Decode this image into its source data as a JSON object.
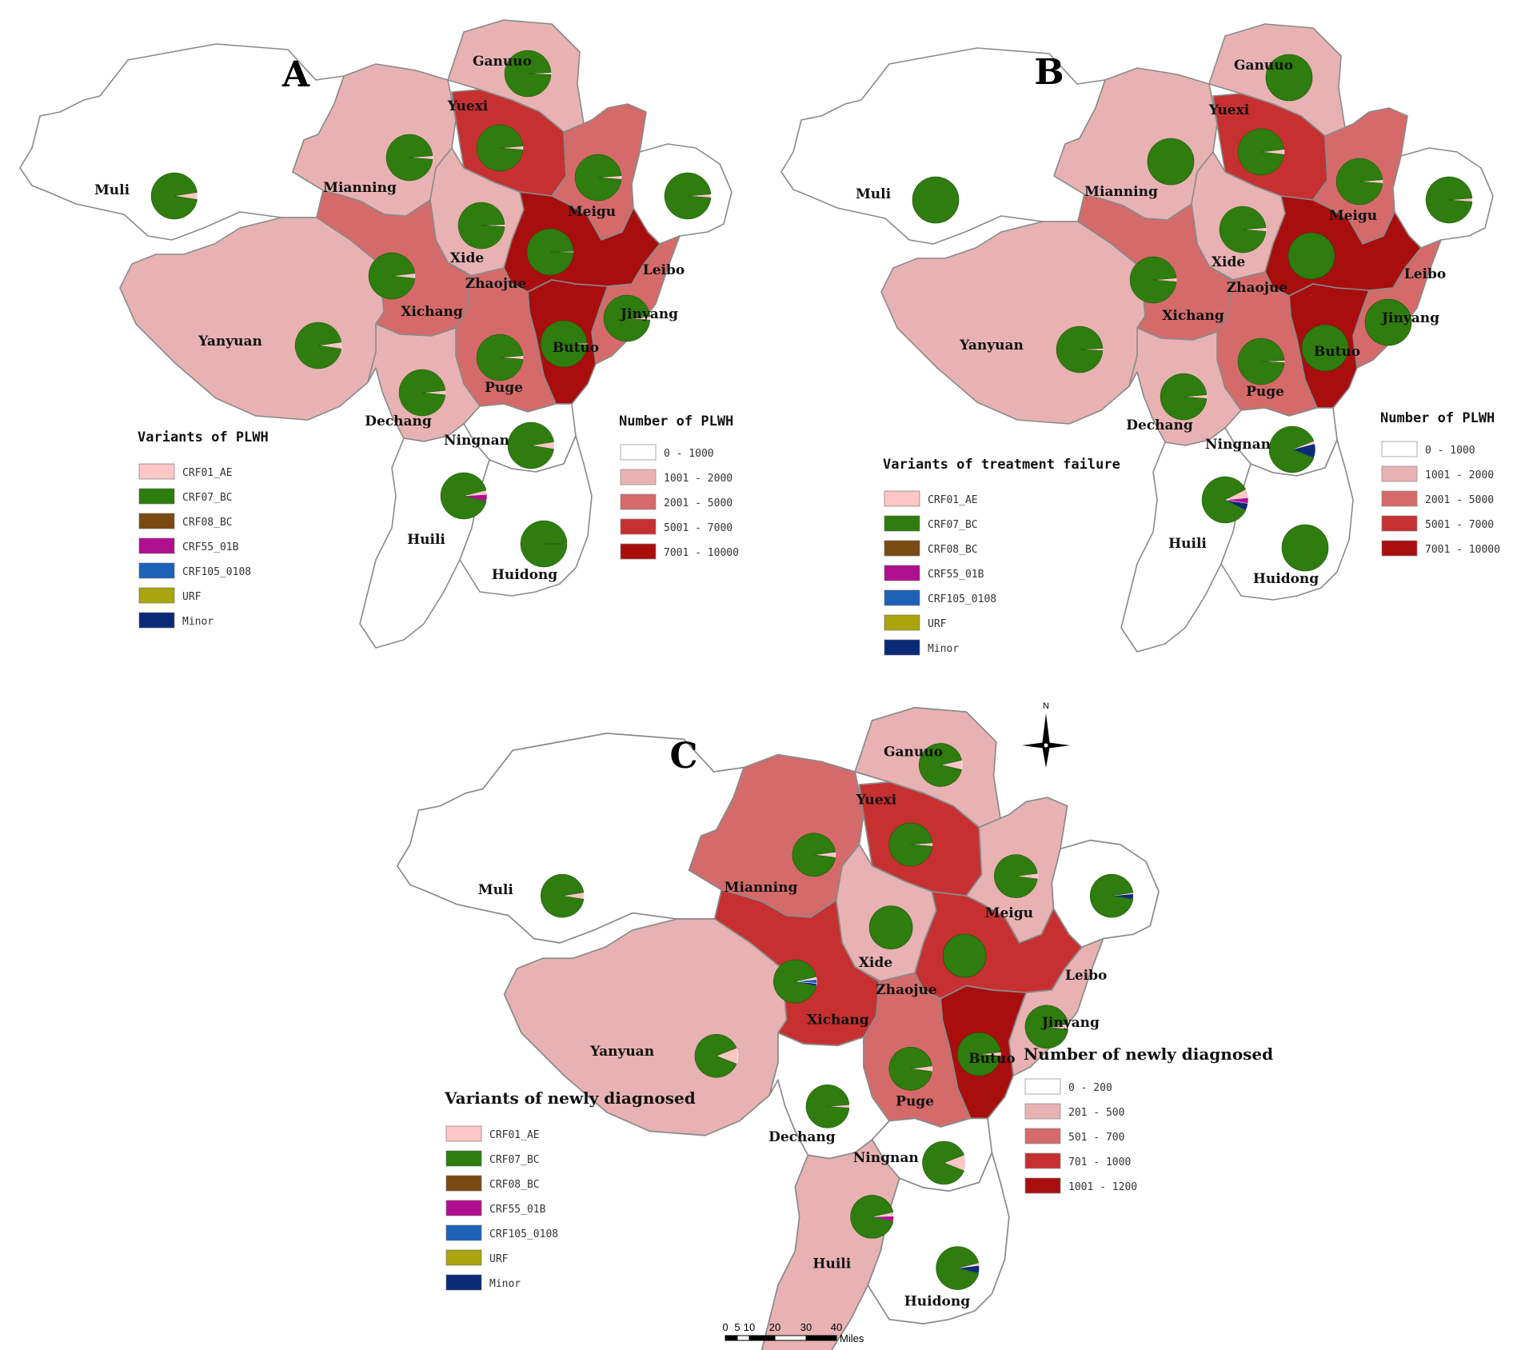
{
  "colors": {
    "crf01_ae": "#ffc6c6",
    "crf07_bc": "#2e7d0e",
    "crf08_bc": "#7a4a12",
    "crf55_01b": "#b0108f",
    "crf105_0108": "#1e62b8",
    "urf": "#aaa40e",
    "minor": "#0b2a78"
  },
  "choropleth_palette": [
    "#ffffff",
    "#e8b2b2",
    "#d56a6a",
    "#c63030",
    "#a80e0e"
  ],
  "county_names": {
    "gannuo": "Ganuuo",
    "yuexi": "Yuexi",
    "mianning": "Mianning",
    "muli": "Muli",
    "meigu": "Meigu",
    "xide": "Xide",
    "zhaojue": "Zhaojue",
    "leibo": "Leibo",
    "xichang": "Xichang",
    "jinyang": "Jinyang",
    "yanyuan": "Yanyuan",
    "butuo": "Butuo",
    "puge": "Puge",
    "dechang": "Dechang",
    "ningnan": "Ningnan",
    "huili": "Huili",
    "huidong": "Huidong"
  },
  "panels": [
    {
      "letter": "A",
      "variants_title": "Variants of PLWH",
      "count_title": "Number of PLWH",
      "variant_labels": [
        "CRF01_AE",
        "CRF07_BC",
        "CRF08_BC",
        "CRF55_01B",
        "CRF105_0108",
        "URF",
        "Minor"
      ],
      "count_classes": [
        "0 - 1000",
        "1001 - 2000",
        "2001 - 5000",
        "5001 - 7000",
        "7001 - 10000"
      ],
      "county_class": {
        "gannuo": 1,
        "yuexi": 3,
        "mianning": 1,
        "muli": 0,
        "meigu": 2,
        "xide": 1,
        "zhaojue": 4,
        "leibo": 0,
        "xichang": 2,
        "jinyang": 2,
        "yanyuan": 1,
        "butuo": 4,
        "puge": 2,
        "dechang": 1,
        "ningnan": 0,
        "huili": 0,
        "huidong": 0
      }
    },
    {
      "letter": "B",
      "variants_title": "Variants of treatment failure",
      "count_title": "Number of PLWH",
      "variant_labels": [
        "CRF01_AE",
        "CRF07_BC",
        "CRF08_BC",
        "CRF55_01B",
        "CRF105_0108",
        "URF",
        "Minor"
      ],
      "count_classes": [
        "0 - 1000",
        "1001 - 2000",
        "2001 - 5000",
        "5001 - 7000",
        "7001 - 10000"
      ],
      "county_class": {
        "gannuo": 1,
        "yuexi": 3,
        "mianning": 1,
        "muli": 0,
        "meigu": 2,
        "xide": 1,
        "zhaojue": 4,
        "leibo": 0,
        "xichang": 2,
        "jinyang": 2,
        "yanyuan": 1,
        "butuo": 4,
        "puge": 2,
        "dechang": 1,
        "ningnan": 0,
        "huili": 0,
        "huidong": 0
      }
    },
    {
      "letter": "C",
      "variants_title": "Variants of newly diagnosed",
      "count_title": "Number of newly diagnosed",
      "variant_labels": [
        "CRF01_AE",
        "CRF07_BC",
        "CRF08_BC",
        "CRF55_01B",
        "CRF105_0108",
        "URF",
        "Minor"
      ],
      "count_classes": [
        "0 - 200",
        "201 - 500",
        "501 - 700",
        "701 - 1000",
        "1001 - 1200"
      ],
      "county_class": {
        "gannuo": 1,
        "yuexi": 3,
        "mianning": 2,
        "muli": 0,
        "meigu": 1,
        "xide": 1,
        "zhaojue": 3,
        "leibo": 0,
        "xichang": 3,
        "jinyang": 1,
        "yanyuan": 1,
        "butuo": 4,
        "puge": 2,
        "dechang": 0,
        "ningnan": 0,
        "huili": 1,
        "huidong": 0
      }
    }
  ],
  "scale_bar": {
    "ticks": [
      "0",
      "5",
      "10",
      "20",
      "30",
      "40"
    ],
    "unit": "Miles"
  },
  "compass": {
    "north_label": "N"
  }
}
